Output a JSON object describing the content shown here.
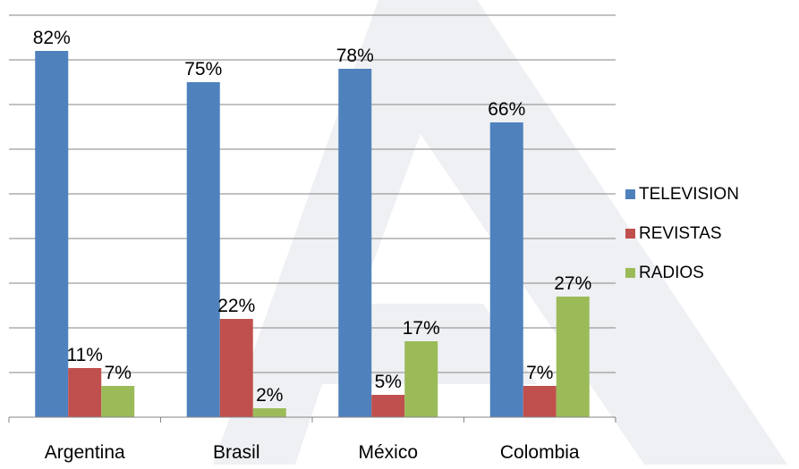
{
  "chart_data": {
    "type": "bar",
    "categories": [
      "Argentina",
      "Brasil",
      "México",
      "Colombia"
    ],
    "series": [
      {
        "name": "TELEVISION",
        "values": [
          82,
          75,
          78,
          66
        ],
        "labels": [
          "82%",
          "75%",
          "78%",
          "66%"
        ],
        "color": "#4f81bd"
      },
      {
        "name": "REVISTAS",
        "values": [
          11,
          22,
          5,
          7
        ],
        "labels": [
          "11%",
          "22%",
          "5%",
          "7%"
        ],
        "color": "#c0504d"
      },
      {
        "name": "RADIOS",
        "values": [
          7,
          2,
          17,
          27
        ],
        "labels": [
          "7%",
          "2%",
          "17%",
          "27%"
        ],
        "color": "#9bbb59"
      }
    ],
    "ylim": [
      0,
      90
    ],
    "grid": true,
    "legend_position": "right",
    "watermark_color": "#eef0f3"
  }
}
